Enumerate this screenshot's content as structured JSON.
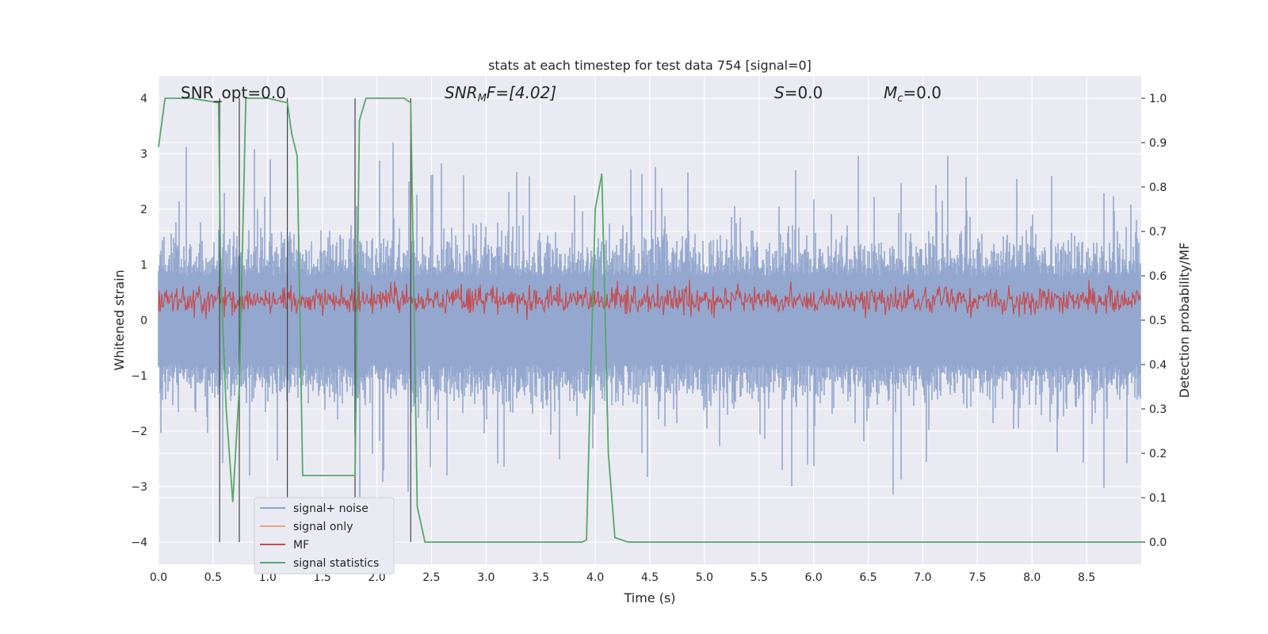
{
  "chart_data": {
    "type": "line",
    "title": "stats at each timestep for test data 754 [signal=0]",
    "xlabel": "Time (s)",
    "ylabel_left": "Whitened strain",
    "ylabel_right": "Detection probability/MF",
    "xlim": [
      0.0,
      9.0
    ],
    "ylim_left": [
      -4.4,
      4.4
    ],
    "ylim_right": [
      -0.05,
      1.05
    ],
    "x_ticks": [
      "0.0",
      "0.5",
      "1.0",
      "1.5",
      "2.0",
      "2.5",
      "3.0",
      "3.5",
      "4.0",
      "4.5",
      "5.0",
      "5.5",
      "6.0",
      "6.5",
      "7.0",
      "7.5",
      "8.0",
      "8.5"
    ],
    "y_ticks_left": [
      "−4",
      "−3",
      "−2",
      "−1",
      "0",
      "1",
      "2",
      "3",
      "4"
    ],
    "y_ticks_right": [
      "0.0",
      "0.1",
      "0.2",
      "0.3",
      "0.4",
      "0.5",
      "0.6",
      "0.7",
      "0.8",
      "0.9",
      "1.0"
    ],
    "grid": true,
    "legend_position": "lower-left",
    "annotations": {
      "snr_opt": {
        "prefix": "SNR_opt=",
        "value": "0.0"
      },
      "snr_mf": {
        "base": "SNR",
        "sub": "M",
        "suffix": "F=[4.02]"
      },
      "s": {
        "base": "S",
        "suffix": "=0.0"
      },
      "mc": {
        "base": "M",
        "sub": "c",
        "suffix": "=0.0"
      }
    },
    "series": [
      {
        "name": "signal+ noise",
        "color": "#8fa4cc",
        "axis": "left",
        "amplitude_range": [
          -3.9,
          4.0
        ]
      },
      {
        "name": "signal only",
        "color": "#e8a58a",
        "axis": "left",
        "values": [
          0
        ]
      },
      {
        "name": "MF",
        "color": "#c44e52",
        "axis": "right",
        "range": [
          0.5,
          0.62
        ]
      },
      {
        "name": "signal statistics",
        "color": "#55a868",
        "axis": "right",
        "x": [
          0.0,
          0.06,
          0.3,
          0.55,
          0.57,
          0.62,
          0.68,
          0.74,
          0.8,
          1.0,
          1.18,
          1.22,
          1.27,
          1.32,
          1.8,
          1.84,
          1.9,
          2.25,
          2.31,
          2.37,
          2.44,
          2.55,
          3.0,
          3.5,
          3.88,
          3.92,
          3.95,
          4.0,
          4.06,
          4.12,
          4.18,
          4.3,
          5.0,
          6.0,
          7.0,
          8.0,
          9.0
        ],
        "values": [
          0.89,
          1.0,
          1.0,
          0.99,
          0.6,
          0.3,
          0.09,
          0.35,
          1.0,
          1.0,
          0.99,
          0.92,
          0.87,
          0.15,
          0.15,
          0.95,
          1.0,
          1.0,
          0.99,
          0.08,
          0.0,
          0.0,
          0.0,
          0.0,
          0.0,
          0.005,
          0.3,
          0.75,
          0.83,
          0.2,
          0.01,
          0.0,
          0.0,
          0.0,
          0.0,
          0.0,
          0.0
        ]
      }
    ],
    "vlines_x": [
      0.56,
      0.74,
      1.18,
      1.8,
      2.31
    ],
    "legend": [
      "signal+ noise",
      "signal only",
      "MF",
      "signal statistics"
    ]
  }
}
